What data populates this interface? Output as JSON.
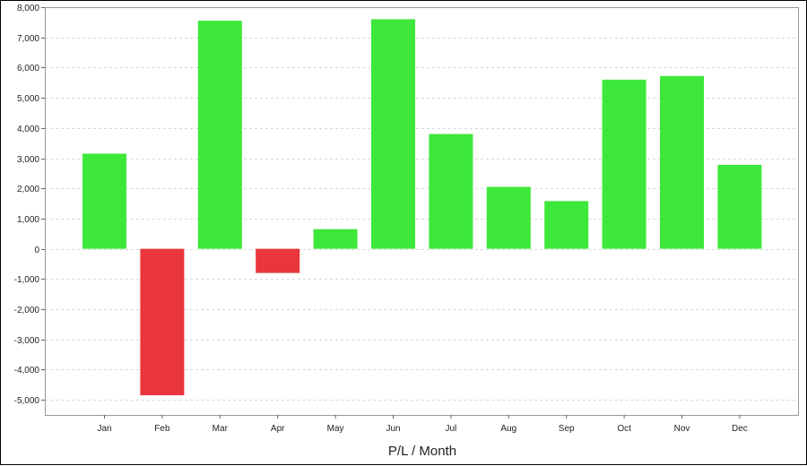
{
  "chart_data": {
    "type": "bar",
    "categories": [
      "Jan",
      "Feb",
      "Mar",
      "Apr",
      "May",
      "Jun",
      "Jul",
      "Aug",
      "Sep",
      "Oct",
      "Nov",
      "Dec"
    ],
    "values": [
      3150,
      -4850,
      7550,
      -800,
      650,
      7600,
      3800,
      2050,
      1580,
      5600,
      5720,
      2780
    ],
    "xlabel": "P/L / Month",
    "ylabel": "",
    "ylim": [
      -5500,
      8000
    ],
    "yticks": [
      8000,
      7000,
      6000,
      5000,
      4000,
      3000,
      2000,
      1000,
      0,
      -1000,
      -2000,
      -3000,
      -4000,
      -5000
    ],
    "ytick_labels": [
      "8,000",
      "7,000",
      "6,000",
      "5,000",
      "4,000",
      "3,000",
      "2,000",
      "1,000",
      "0",
      "-1,000",
      "-2,000",
      "-3,000",
      "-4,000",
      "-5,000"
    ],
    "grid": true,
    "legend": "none",
    "colors": {
      "positive": "#3ee83a",
      "negative": "#e8363c",
      "grid": "#d8d8d8",
      "plot_border": "#999999"
    }
  }
}
